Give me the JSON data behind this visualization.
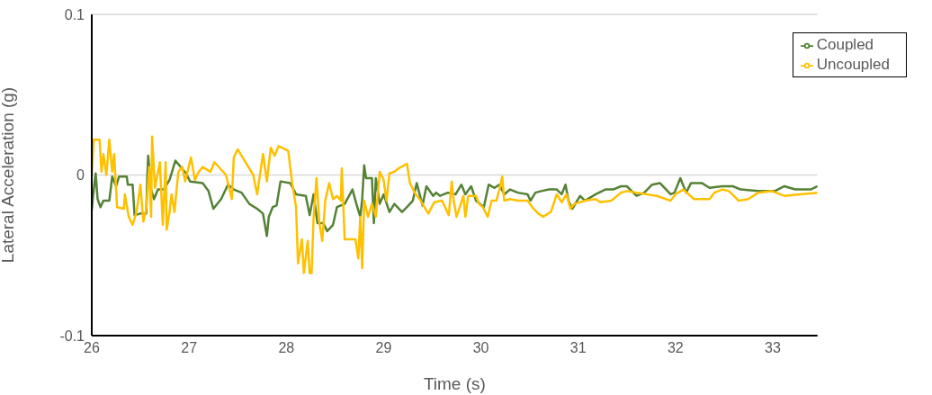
{
  "chart_data": {
    "type": "line",
    "xlabel": "Time (s)",
    "ylabel": "Lateral Acceleration (g)",
    "xlim": [
      26,
      33.46
    ],
    "xticks": [
      26,
      27,
      28,
      29,
      30,
      31,
      32,
      33
    ],
    "ylim": [
      -0.1,
      0.1
    ],
    "yticks": [
      -0.1,
      0,
      0.1
    ],
    "grid": "y",
    "legend": "top right",
    "marker": "none",
    "line_style": "solid",
    "series": [
      {
        "name": "Coupled",
        "color": "#548235",
        "x": [
          26.0,
          26.01,
          26.04,
          26.06,
          26.09,
          26.12,
          26.18,
          26.21,
          26.25,
          26.28,
          26.36,
          26.37,
          26.42,
          26.44,
          26.5,
          26.56,
          26.57,
          26.58,
          26.61,
          26.64,
          26.68,
          26.74,
          26.8,
          26.86,
          26.9,
          26.97,
          27.01,
          27.14,
          27.2,
          27.25,
          27.33,
          27.4,
          27.46,
          27.54,
          27.62,
          27.7,
          27.76,
          27.8,
          27.82,
          27.86,
          27.9,
          27.94,
          28.04,
          28.1,
          28.2,
          28.24,
          28.28,
          28.32,
          28.38,
          28.42,
          28.48,
          28.52,
          28.6,
          28.68,
          28.72,
          28.76,
          28.78,
          28.8,
          28.82,
          28.88,
          28.9,
          28.92,
          28.96,
          29.0,
          29.06,
          29.11,
          29.19,
          29.24,
          29.3,
          29.34,
          29.4,
          29.44,
          29.51,
          29.54,
          29.58,
          29.66,
          29.74,
          29.8,
          29.84,
          29.9,
          29.95,
          30.03,
          30.08,
          30.14,
          30.19,
          30.24,
          30.3,
          30.38,
          30.48,
          30.51,
          30.56,
          30.62,
          30.7,
          30.78,
          30.83,
          30.87,
          30.9,
          30.94,
          31.02,
          31.07,
          31.18,
          31.28,
          31.36,
          31.44,
          31.5,
          31.6,
          31.68,
          31.76,
          31.84,
          31.95,
          31.99,
          32.05,
          32.11,
          32.16,
          32.27,
          32.35,
          32.48,
          32.59,
          32.67,
          32.85,
          33.02,
          33.12,
          33.23,
          33.39,
          33.46
        ],
        "values": [
          -0.022,
          -0.015,
          0.001,
          -0.015,
          -0.02,
          -0.016,
          -0.016,
          -0.001,
          -0.007,
          -0.001,
          -0.001,
          -0.006,
          -0.006,
          -0.025,
          -0.024,
          -0.024,
          -0.003,
          0.012,
          -0.009,
          -0.015,
          -0.009,
          -0.009,
          -0.003,
          0.009,
          0.006,
          0.001,
          -0.004,
          -0.005,
          -0.01,
          -0.021,
          -0.015,
          -0.006,
          -0.009,
          -0.011,
          -0.018,
          -0.021,
          -0.024,
          -0.038,
          -0.026,
          -0.02,
          -0.019,
          -0.004,
          -0.005,
          -0.012,
          -0.013,
          -0.025,
          -0.012,
          -0.03,
          -0.03,
          -0.035,
          -0.031,
          -0.02,
          -0.018,
          -0.009,
          -0.018,
          -0.026,
          -0.015,
          0.006,
          -0.002,
          -0.002,
          -0.03,
          -0.002,
          -0.018,
          -0.012,
          -0.023,
          -0.018,
          -0.023,
          -0.02,
          -0.016,
          -0.005,
          -0.019,
          -0.007,
          -0.013,
          -0.011,
          -0.013,
          -0.011,
          -0.012,
          -0.006,
          -0.012,
          -0.007,
          -0.016,
          -0.02,
          -0.006,
          -0.008,
          -0.006,
          -0.012,
          -0.009,
          -0.011,
          -0.012,
          -0.016,
          -0.011,
          -0.01,
          -0.009,
          -0.009,
          -0.012,
          -0.006,
          -0.016,
          -0.021,
          -0.013,
          -0.016,
          -0.012,
          -0.009,
          -0.009,
          -0.007,
          -0.007,
          -0.013,
          -0.011,
          -0.006,
          -0.005,
          -0.012,
          -0.011,
          -0.002,
          -0.011,
          -0.005,
          -0.005,
          -0.008,
          -0.007,
          -0.007,
          -0.009,
          -0.01,
          -0.01,
          -0.007,
          -0.009,
          -0.009,
          -0.007
        ]
      },
      {
        "name": "Uncoupled",
        "color": "#ffc000",
        "x": [
          26.0,
          26.02,
          26.08,
          26.1,
          26.12,
          26.15,
          26.18,
          26.21,
          26.23,
          26.26,
          26.33,
          26.34,
          26.38,
          26.42,
          26.46,
          26.5,
          26.53,
          26.56,
          26.59,
          26.61,
          26.62,
          26.65,
          26.7,
          26.73,
          26.76,
          26.77,
          26.8,
          26.82,
          26.85,
          26.89,
          26.93,
          26.96,
          27.02,
          27.06,
          27.1,
          27.14,
          27.22,
          27.26,
          27.38,
          27.44,
          27.46,
          27.5,
          27.54,
          27.66,
          27.7,
          27.76,
          27.8,
          27.84,
          27.88,
          27.92,
          28.02,
          28.06,
          28.1,
          28.12,
          28.16,
          28.18,
          28.22,
          28.24,
          28.26,
          28.28,
          28.31,
          28.34,
          28.37,
          28.4,
          28.44,
          28.48,
          28.52,
          28.56,
          28.57,
          28.6,
          28.71,
          28.74,
          28.76,
          28.78,
          28.8,
          28.84,
          28.88,
          28.92,
          28.96,
          29.0,
          29.03,
          29.06,
          29.11,
          29.15,
          29.24,
          29.27,
          29.32,
          29.38,
          29.46,
          29.52,
          29.6,
          29.67,
          29.7,
          29.72,
          29.75,
          29.82,
          29.84,
          29.87,
          29.95,
          29.98,
          30.02,
          30.07,
          30.11,
          30.16,
          30.19,
          30.22,
          30.24,
          30.3,
          30.38,
          30.48,
          30.54,
          30.59,
          30.64,
          30.72,
          30.78,
          30.83,
          30.88,
          30.92,
          30.96,
          31.07,
          31.18,
          31.23,
          31.34,
          31.44,
          31.5,
          31.6,
          31.81,
          31.95,
          32.0,
          32.08,
          32.19,
          32.35,
          32.4,
          32.48,
          32.55,
          32.65,
          32.75,
          32.85,
          32.99,
          33.12,
          33.28,
          33.46
        ],
        "values": [
          0,
          0.022,
          0.022,
          0.002,
          0.013,
          0,
          0.022,
          0.002,
          0.013,
          -0.02,
          -0.021,
          -0.012,
          -0.026,
          -0.031,
          -0.023,
          -0.006,
          -0.029,
          -0.021,
          0.005,
          -0.026,
          0.024,
          -0.008,
          0.008,
          -0.031,
          0.008,
          -0.034,
          -0.023,
          -0.012,
          -0.023,
          0.002,
          0.005,
          -0.004,
          0.011,
          -0.003,
          0.002,
          0.005,
          0.002,
          0.008,
          0,
          -0.015,
          0.011,
          0.016,
          0.012,
          0,
          -0.012,
          0.013,
          -0.004,
          0.017,
          0.012,
          0.018,
          0.015,
          -0.005,
          -0.02,
          -0.055,
          -0.04,
          -0.061,
          -0.041,
          -0.061,
          -0.061,
          -0.027,
          -0.002,
          -0.03,
          -0.041,
          -0.016,
          -0.005,
          -0.015,
          -0.013,
          -0.016,
          0.004,
          -0.04,
          -0.04,
          -0.052,
          -0.026,
          -0.058,
          -0.016,
          -0.026,
          -0.018,
          -0.026,
          0.002,
          -0.003,
          -0.016,
          0.001,
          0.002,
          0.004,
          0.007,
          -0.005,
          -0.011,
          -0.016,
          -0.024,
          -0.017,
          -0.016,
          -0.025,
          -0.004,
          -0.016,
          -0.026,
          -0.013,
          -0.026,
          -0.013,
          -0.013,
          -0.018,
          -0.02,
          -0.026,
          -0.016,
          -0.016,
          -0.009,
          -0.001,
          -0.016,
          -0.015,
          -0.016,
          -0.016,
          -0.021,
          -0.024,
          -0.026,
          -0.023,
          -0.012,
          -0.017,
          -0.012,
          -0.021,
          -0.018,
          -0.016,
          -0.015,
          -0.017,
          -0.016,
          -0.011,
          -0.01,
          -0.011,
          -0.013,
          -0.016,
          -0.012,
          -0.009,
          -0.015,
          -0.015,
          -0.011,
          -0.009,
          -0.01,
          -0.016,
          -0.015,
          -0.011,
          -0.01,
          -0.013,
          -0.012,
          -0.011
        ]
      }
    ]
  }
}
